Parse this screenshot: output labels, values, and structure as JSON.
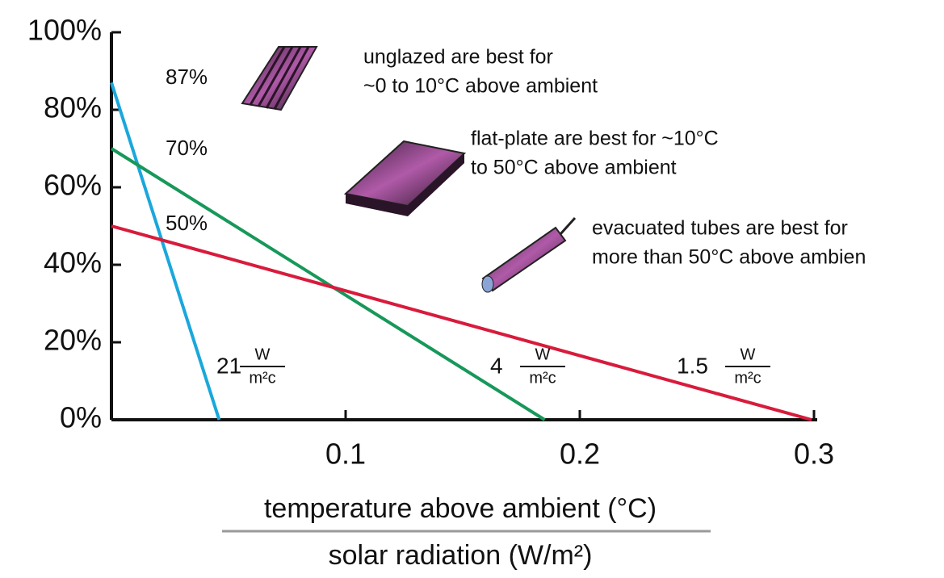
{
  "chart_data": {
    "type": "line",
    "xlim": [
      0,
      0.3
    ],
    "ylim": [
      0,
      100
    ],
    "xticks": [
      0.1,
      0.2,
      0.3
    ],
    "yticks": [
      {
        "value": 0,
        "label": "0%"
      },
      {
        "value": 20,
        "label": "20%"
      },
      {
        "value": 40,
        "label": "40%"
      },
      {
        "value": 60,
        "label": "60%"
      },
      {
        "value": 80,
        "label": "80%"
      },
      {
        "value": 100,
        "label": "100%"
      }
    ],
    "series": [
      {
        "color": "#1aa7dc",
        "x": [
          0,
          0.046
        ],
        "values": [
          87,
          0
        ]
      },
      {
        "color": "#17985a",
        "x": [
          0,
          0.185
        ],
        "values": [
          70,
          0
        ]
      },
      {
        "color": "#d81b3c",
        "x": [
          0,
          0.299
        ],
        "values": [
          50,
          0
        ]
      }
    ],
    "start_labels": [
      "87%",
      "70%",
      "50%"
    ],
    "notes": [
      [
        "unglazed are best for",
        "~0 to 10°C above ambient"
      ],
      [
        "flat-plate are best for ~10°C",
        "to 50°C above ambient"
      ],
      [
        "evacuated tubes are best for",
        "more than 50°C above ambien"
      ]
    ],
    "slope_labels": [
      {
        "value": 21,
        "unit_top": "W",
        "unit_bottom": "m²c"
      },
      {
        "value": 4,
        "unit_top": "W",
        "unit_bottom": "m²c"
      },
      {
        "value": 1.5,
        "unit_top": "W",
        "unit_bottom": "m²c"
      }
    ],
    "xlabel": "temperature above ambient (°C)",
    "xlabel_denominator": "solar radiation (W/m²)"
  }
}
